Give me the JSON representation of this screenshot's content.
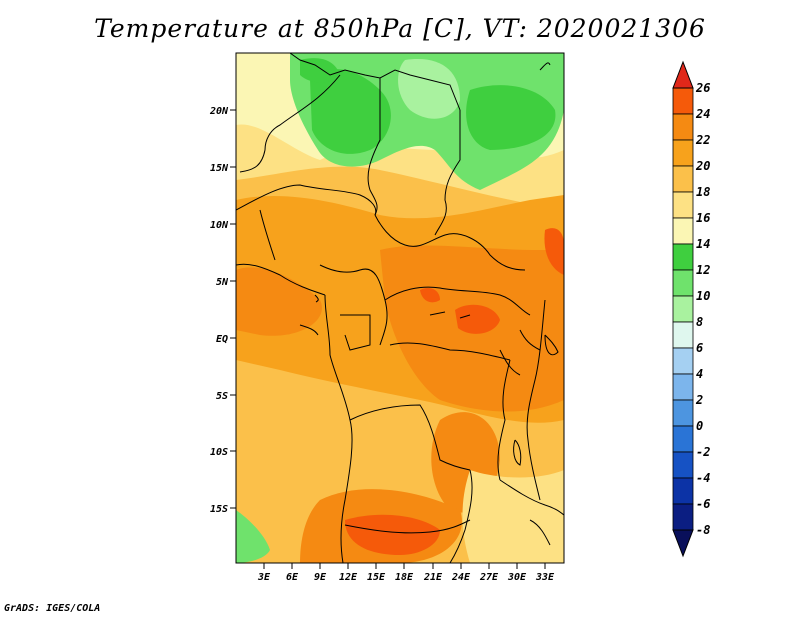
{
  "title": "Temperature at 850hPa [C], VT: 2020021306",
  "credit": "GrADS: IGES/COLA",
  "map": {
    "variable": "Temperature at 850hPa",
    "units": "C",
    "valid_time": "2020021306",
    "lat_labels": [
      "20N",
      "15N",
      "10N",
      "5N",
      "EQ",
      "5S",
      "10S",
      "15S"
    ],
    "lon_labels": [
      "3E",
      "6E",
      "9E",
      "12E",
      "15E",
      "18E",
      "21E",
      "24E",
      "27E",
      "30E",
      "33E"
    ]
  },
  "colorbar": {
    "labels": [
      "26",
      "24",
      "22",
      "20",
      "18",
      "16",
      "14",
      "12",
      "10",
      "8",
      "6",
      "4",
      "2",
      "0",
      "-2",
      "-4",
      "-6",
      "-8"
    ],
    "colors": [
      "#e0281a",
      "#f55a0a",
      "#f58a12",
      "#f7a21c",
      "#fbc04a",
      "#fde184",
      "#fbf6b4",
      "#3fcf3f",
      "#6fe26c",
      "#a9f29f",
      "#dff7ee",
      "#a5d0f2",
      "#7cb5ec",
      "#4d95e0",
      "#2a74d6",
      "#1652c4",
      "#0c33a6",
      "#0b1e82",
      "#090f5a"
    ]
  }
}
